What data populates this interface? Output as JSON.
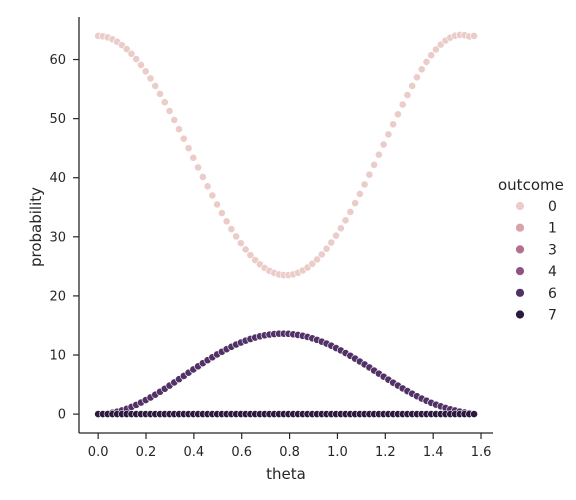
{
  "chart_data": {
    "type": "scatter",
    "xlabel": "theta",
    "ylabel": "probability",
    "xlim": [
      -0.08,
      1.65
    ],
    "ylim": [
      -3.2,
      67.2
    ],
    "xticks": [
      0.0,
      0.2,
      0.4,
      0.6,
      0.8,
      1.0,
      1.2,
      1.4,
      1.6
    ],
    "xtick_labels": [
      "0.0",
      "0.2",
      "0.4",
      "0.6",
      "0.8",
      "1.0",
      "1.2",
      "1.4",
      "1.6"
    ],
    "yticks": [
      0,
      10,
      20,
      30,
      40,
      50,
      60
    ],
    "ytick_labels": [
      "0",
      "10",
      "20",
      "30",
      "40",
      "50",
      "60"
    ],
    "grid": false,
    "legend": {
      "title": "outcome",
      "placement": "right",
      "entries": [
        {
          "label": "0",
          "color": "#ebccc8"
        },
        {
          "label": "1",
          "color": "#d9a2a6"
        },
        {
          "label": "3",
          "color": "#b26f8e"
        },
        {
          "label": "4",
          "color": "#8f5284"
        },
        {
          "label": "6",
          "color": "#523266"
        },
        {
          "label": "7",
          "color": "#2b1a3e"
        }
      ]
    },
    "x": [
      0.0,
      0.0199,
      0.0398,
      0.0597,
      0.0795,
      0.0994,
      0.1193,
      0.1392,
      0.1591,
      0.179,
      0.1988,
      0.2187,
      0.2386,
      0.2585,
      0.2784,
      0.2983,
      0.3181,
      0.338,
      0.3579,
      0.3778,
      0.3977,
      0.4176,
      0.4374,
      0.4573,
      0.4772,
      0.4971,
      0.517,
      0.5369,
      0.5567,
      0.5766,
      0.5965,
      0.6164,
      0.6363,
      0.6562,
      0.676,
      0.6959,
      0.7158,
      0.7357,
      0.7556,
      0.7755,
      0.7953,
      0.8152,
      0.8351,
      0.855,
      0.8749,
      0.8948,
      0.9146,
      0.9345,
      0.9544,
      0.9743,
      0.9942,
      1.0141,
      1.0339,
      1.0538,
      1.0737,
      1.0936,
      1.1135,
      1.1334,
      1.1532,
      1.1731,
      1.193,
      1.2129,
      1.2328,
      1.2527,
      1.2725,
      1.2924,
      1.3123,
      1.3322,
      1.3521,
      1.372,
      1.3918,
      1.4117,
      1.4316,
      1.4515,
      1.4714,
      1.4913,
      1.5111,
      1.531,
      1.5509,
      1.5708
    ],
    "series": [
      {
        "name": "0",
        "color": "#ebccc8",
        "values": [
          64.0,
          63.94,
          63.75,
          63.43,
          63.0,
          62.44,
          61.77,
          60.98,
          60.09,
          59.09,
          58.0,
          56.81,
          55.54,
          54.19,
          52.78,
          51.3,
          49.78,
          48.21,
          46.61,
          45.0,
          43.37,
          41.75,
          40.14,
          38.55,
          37.0,
          35.48,
          34.03,
          32.63,
          31.31,
          30.07,
          28.92,
          27.86,
          26.91,
          26.07,
          25.34,
          24.73,
          24.24,
          23.88,
          23.64,
          23.52,
          23.53,
          23.66,
          23.92,
          24.31,
          24.81,
          25.43,
          26.17,
          27.02,
          27.98,
          29.04,
          30.2,
          31.45,
          32.79,
          34.21,
          35.7,
          37.25,
          38.86,
          40.51,
          42.19,
          43.9,
          45.61,
          47.33,
          49.04,
          50.73,
          52.39,
          53.99,
          55.53,
          56.99,
          58.35,
          59.6,
          60.73,
          61.71,
          62.54,
          63.21,
          63.71,
          64.03,
          64.17,
          64.13,
          63.91,
          64.0
        ]
      },
      {
        "name": "1",
        "color": "#d9a2a6",
        "values": [
          0,
          0,
          0,
          0,
          0,
          0,
          0,
          0,
          0,
          0,
          0,
          0,
          0,
          0,
          0,
          0,
          0,
          0,
          0,
          0,
          0,
          0,
          0,
          0,
          0,
          0,
          0,
          0,
          0,
          0,
          0,
          0,
          0,
          0,
          0,
          0,
          0,
          0,
          0,
          0,
          0,
          0,
          0,
          0,
          0,
          0,
          0,
          0,
          0,
          0,
          0,
          0,
          0,
          0,
          0,
          0,
          0,
          0,
          0,
          0,
          0,
          0,
          0,
          0,
          0,
          0,
          0,
          0,
          0,
          0,
          0,
          0,
          0,
          0,
          0,
          0,
          0,
          0,
          0,
          0
        ]
      },
      {
        "name": "3",
        "color": "#b26f8e",
        "values": [
          0,
          0,
          0,
          0,
          0,
          0,
          0,
          0,
          0,
          0,
          0,
          0,
          0,
          0,
          0,
          0,
          0,
          0,
          0,
          0,
          0,
          0,
          0,
          0,
          0,
          0,
          0,
          0,
          0,
          0,
          0,
          0,
          0,
          0,
          0,
          0,
          0,
          0,
          0,
          0,
          0,
          0,
          0,
          0,
          0,
          0,
          0,
          0,
          0,
          0,
          0,
          0,
          0,
          0,
          0,
          0,
          0,
          0,
          0,
          0,
          0,
          0,
          0,
          0,
          0,
          0,
          0,
          0,
          0,
          0,
          0,
          0,
          0,
          0,
          0,
          0,
          0,
          0,
          0,
          0
        ]
      },
      {
        "name": "4",
        "color": "#8f5284",
        "values": [
          0,
          0,
          0,
          0,
          0,
          0,
          0,
          0,
          0,
          0,
          0,
          0,
          0,
          0,
          0,
          0,
          0,
          0,
          0,
          0,
          0,
          0,
          0,
          0,
          0,
          0,
          0,
          0,
          0,
          0,
          0,
          0,
          0,
          0,
          0,
          0,
          0,
          0,
          0,
          0,
          0,
          0,
          0,
          0,
          0,
          0,
          0,
          0,
          0,
          0,
          0,
          0,
          0,
          0,
          0,
          0,
          0,
          0,
          0,
          0,
          0,
          0,
          0,
          0,
          0,
          0,
          0,
          0,
          0,
          0,
          0,
          0,
          0,
          0,
          0,
          0,
          0,
          0,
          0,
          0
        ]
      },
      {
        "name": "6",
        "color": "#523266",
        "values": [
          0.0,
          0.03,
          0.1,
          0.23,
          0.4,
          0.63,
          0.9,
          1.21,
          1.56,
          1.95,
          2.37,
          2.81,
          3.29,
          3.78,
          4.29,
          4.82,
          5.36,
          5.9,
          6.45,
          7.0,
          7.55,
          8.08,
          8.61,
          9.12,
          9.62,
          10.1,
          10.55,
          10.99,
          11.39,
          11.77,
          12.11,
          12.43,
          12.71,
          12.95,
          13.16,
          13.33,
          13.46,
          13.55,
          13.6,
          13.61,
          13.58,
          13.5,
          13.39,
          13.24,
          13.05,
          12.82,
          12.56,
          12.26,
          11.93,
          11.57,
          11.18,
          10.77,
          10.33,
          9.87,
          9.39,
          8.9,
          8.4,
          7.89,
          7.37,
          6.85,
          6.33,
          5.82,
          5.32,
          4.83,
          4.35,
          3.89,
          3.45,
          3.03,
          2.63,
          2.26,
          1.91,
          1.6,
          1.31,
          1.05,
          0.82,
          0.61,
          0.43,
          0.28,
          0.16,
          0.0
        ]
      },
      {
        "name": "7",
        "color": "#2b1a3e",
        "values": [
          0,
          0,
          0,
          0,
          0,
          0,
          0,
          0,
          0,
          0,
          0,
          0,
          0,
          0,
          0,
          0,
          0,
          0,
          0,
          0,
          0,
          0,
          0,
          0,
          0,
          0,
          0,
          0,
          0,
          0,
          0,
          0,
          0,
          0,
          0,
          0,
          0,
          0,
          0,
          0,
          0,
          0,
          0,
          0,
          0,
          0,
          0,
          0,
          0,
          0,
          0,
          0,
          0,
          0,
          0,
          0,
          0,
          0,
          0,
          0,
          0,
          0,
          0,
          0,
          0,
          0,
          0,
          0,
          0,
          0,
          0,
          0,
          0,
          0,
          0,
          0,
          0,
          0,
          0,
          0
        ]
      }
    ]
  }
}
